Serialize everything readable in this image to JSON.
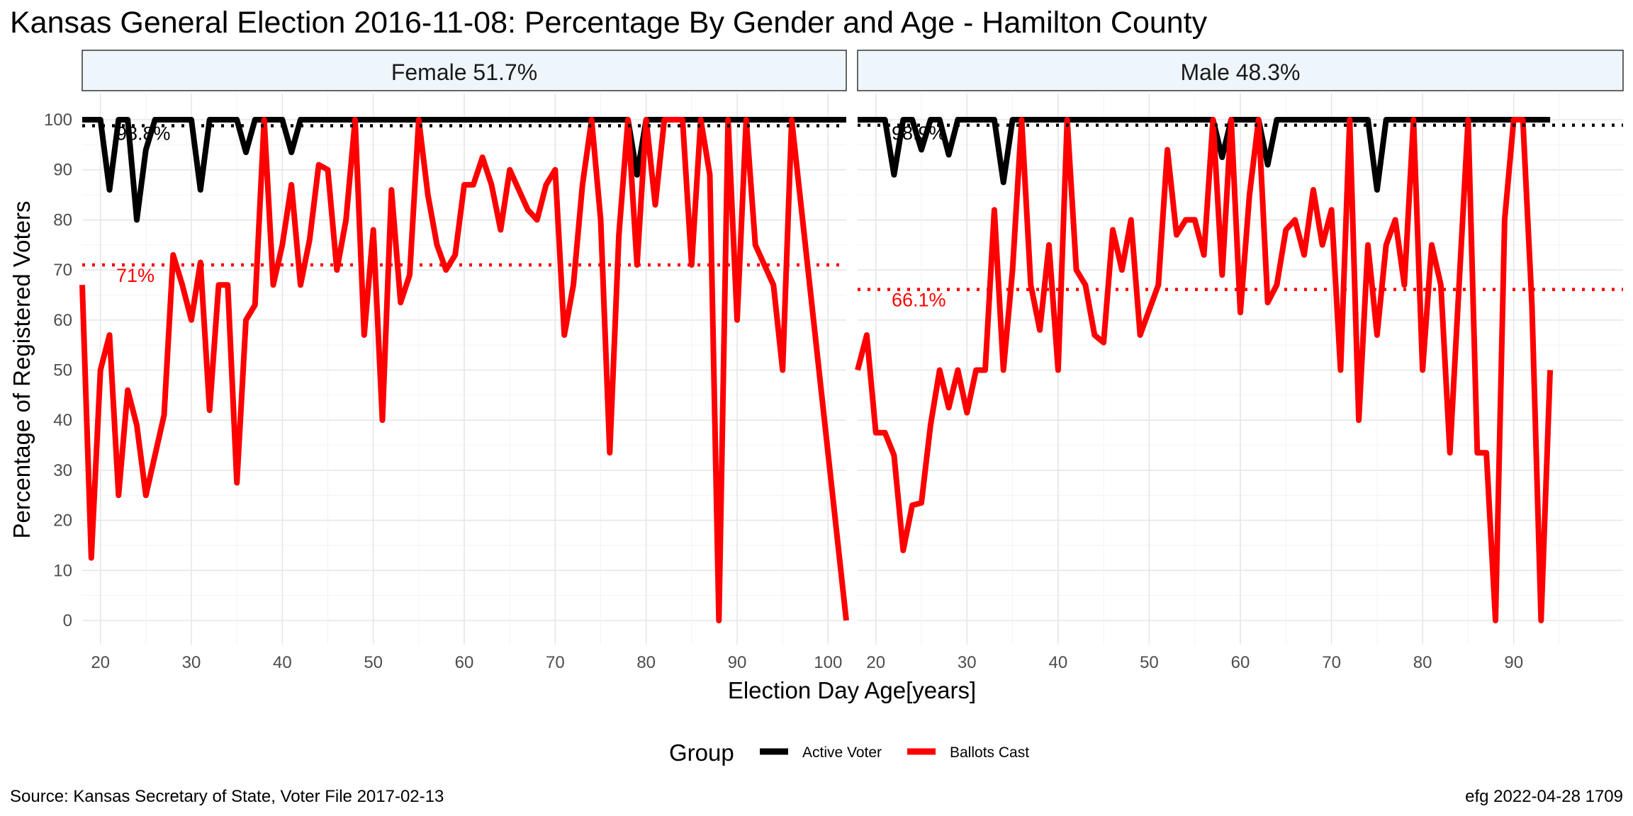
{
  "title": "Kansas General Election 2016-11-08:  Percentage By Gender and Age - Hamilton County",
  "caption_left": "Source:  Kansas Secretary of State, Voter File  2017-02-13",
  "caption_right": "efg 2022-04-28 1709",
  "chart_data": {
    "type": "line",
    "xlabel": "Election Day Age[years]",
    "ylabel": "Percentage of Registered Voters",
    "ylim": [
      0,
      100
    ],
    "yticks": [
      0,
      10,
      20,
      30,
      40,
      50,
      60,
      70,
      80,
      90,
      100
    ],
    "grid": true,
    "legend": {
      "title": "Group",
      "placement": "bottom",
      "entries": [
        {
          "name": "Active Voter",
          "color": "#000000"
        },
        {
          "name": "Ballots Cast",
          "color": "#ff0000"
        }
      ]
    },
    "panels": [
      {
        "strip": "Female 51.7%",
        "xlim": [
          18,
          102
        ],
        "xticks": [
          20,
          30,
          40,
          50,
          60,
          70,
          80,
          90,
          100
        ],
        "reference_lines": [
          {
            "series": "Active Voter",
            "value": 98.8,
            "label": "98.8%",
            "color": "#000000"
          },
          {
            "series": "Ballots Cast",
            "value": 71,
            "label": "71%",
            "color": "#ff0000"
          }
        ],
        "series": [
          {
            "name": "Active Voter",
            "color": "#000000",
            "x": [
              18,
              19,
              20,
              21,
              22,
              23,
              24,
              25,
              26,
              27,
              28,
              29,
              30,
              31,
              32,
              33,
              34,
              35,
              36,
              37,
              38,
              39,
              40,
              41,
              42,
              43,
              44,
              45,
              46,
              47,
              48,
              49,
              50,
              51,
              52,
              53,
              54,
              55,
              56,
              57,
              58,
              59,
              60,
              61,
              62,
              63,
              64,
              65,
              66,
              67,
              68,
              69,
              70,
              71,
              72,
              73,
              74,
              75,
              76,
              77,
              78,
              79,
              80,
              81,
              82,
              83,
              84,
              85,
              86,
              87,
              88,
              89,
              90,
              91,
              92,
              93,
              94,
              95,
              96,
              97,
              98,
              99,
              100,
              101,
              102
            ],
            "y": [
              100,
              100,
              100,
              86,
              100,
              100,
              80,
              94,
              100,
              100,
              100,
              100,
              100,
              86,
              100,
              100,
              100,
              100,
              93.5,
              100,
              100,
              100,
              100,
              93.5,
              100,
              100,
              100,
              100,
              100,
              100,
              100,
              100,
              100,
              100,
              100,
              100,
              100,
              100,
              100,
              100,
              100,
              100,
              100,
              100,
              100,
              100,
              100,
              100,
              100,
              100,
              100,
              100,
              100,
              100,
              100,
              100,
              100,
              100,
              100,
              100,
              100,
              89,
              100,
              100,
              100,
              100,
              100,
              100,
              100,
              100,
              100,
              100,
              100,
              100,
              100,
              100,
              100,
              100,
              100,
              100,
              100,
              100,
              100,
              100,
              100
            ]
          },
          {
            "name": "Ballots Cast",
            "color": "#ff0000",
            "x": [
              18,
              19,
              20,
              21,
              22,
              23,
              24,
              25,
              26,
              27,
              28,
              29,
              30,
              31,
              32,
              33,
              34,
              35,
              36,
              37,
              38,
              39,
              40,
              41,
              42,
              43,
              44,
              45,
              46,
              47,
              48,
              49,
              50,
              51,
              52,
              53,
              54,
              55,
              56,
              57,
              58,
              59,
              60,
              61,
              62,
              63,
              64,
              65,
              66,
              67,
              68,
              69,
              70,
              71,
              72,
              73,
              74,
              75,
              76,
              77,
              78,
              79,
              80,
              81,
              82,
              83,
              84,
              85,
              86,
              87,
              88,
              89,
              90,
              91,
              92,
              93,
              94,
              95,
              96,
              102
            ],
            "y": [
              67,
              12.5,
              50,
              57,
              25,
              46,
              39,
              25,
              33,
              41,
              73,
              67,
              60,
              71.5,
              42,
              67,
              67,
              27.5,
              60,
              63,
              100,
              67,
              75,
              87,
              67,
              76,
              91,
              90,
              70,
              80,
              100,
              57,
              78,
              40,
              86,
              63.5,
              69,
              100,
              85,
              75,
              70,
              73,
              87,
              87,
              92.5,
              87,
              78,
              90,
              86,
              82,
              80,
              87,
              90,
              57,
              67,
              87,
              100,
              80,
              33.5,
              77,
              100,
              71,
              100,
              83,
              100,
              100,
              100,
              71,
              100,
              89,
              0,
              100,
              60,
              100,
              75,
              71,
              67,
              50,
              100,
              0
            ]
          }
        ]
      },
      {
        "strip": "Male 48.3%",
        "xlim": [
          18,
          102
        ],
        "xticks": [
          20,
          30,
          40,
          50,
          60,
          70,
          80,
          90
        ],
        "reference_lines": [
          {
            "series": "Active Voter",
            "value": 98.9,
            "label": "98.9%",
            "color": "#000000"
          },
          {
            "series": "Ballots Cast",
            "value": 66.1,
            "label": "66.1%",
            "color": "#ff0000"
          }
        ],
        "series": [
          {
            "name": "Active Voter",
            "color": "#000000",
            "x": [
              18,
              19,
              20,
              21,
              22,
              23,
              24,
              25,
              26,
              27,
              28,
              29,
              30,
              31,
              32,
              33,
              34,
              35,
              36,
              37,
              38,
              39,
              40,
              41,
              42,
              43,
              44,
              45,
              46,
              47,
              48,
              49,
              50,
              51,
              52,
              53,
              54,
              55,
              56,
              57,
              58,
              59,
              60,
              61,
              62,
              63,
              64,
              65,
              66,
              67,
              68,
              69,
              70,
              71,
              72,
              73,
              74,
              75,
              76,
              77,
              78,
              79,
              80,
              81,
              82,
              83,
              84,
              85,
              86,
              87,
              88,
              89,
              90,
              91,
              92,
              93,
              94
            ],
            "y": [
              100,
              100,
              100,
              100,
              89,
              100,
              100,
              94,
              100,
              100,
              93,
              100,
              100,
              100,
              100,
              100,
              87.5,
              100,
              100,
              100,
              100,
              100,
              100,
              100,
              100,
              100,
              100,
              100,
              100,
              100,
              100,
              100,
              100,
              100,
              100,
              100,
              100,
              100,
              100,
              100,
              92.5,
              100,
              100,
              100,
              100,
              91,
              100,
              100,
              100,
              100,
              100,
              100,
              100,
              100,
              100,
              100,
              100,
              86,
              100,
              100,
              100,
              100,
              100,
              100,
              100,
              100,
              100,
              100,
              100,
              100,
              100,
              100,
              100,
              100,
              100,
              100,
              100
            ]
          },
          {
            "name": "Ballots Cast",
            "color": "#ff0000",
            "x": [
              18,
              19,
              20,
              21,
              22,
              23,
              24,
              25,
              26,
              27,
              28,
              29,
              30,
              31,
              32,
              33,
              34,
              35,
              36,
              37,
              38,
              39,
              40,
              41,
              42,
              43,
              44,
              45,
              46,
              47,
              48,
              49,
              50,
              51,
              52,
              53,
              54,
              55,
              56,
              57,
              58,
              59,
              60,
              61,
              62,
              63,
              64,
              65,
              66,
              67,
              68,
              69,
              70,
              71,
              72,
              73,
              74,
              75,
              76,
              77,
              78,
              79,
              80,
              81,
              82,
              83,
              84,
              85,
              86,
              87,
              88,
              89,
              90,
              91,
              92,
              93,
              94
            ],
            "y": [
              50,
              57,
              37.5,
              37.5,
              33,
              14,
              23,
              23.5,
              39,
              50,
              42.5,
              50,
              41.5,
              50,
              50,
              82,
              50,
              70,
              100,
              67,
              58,
              75,
              50,
              100,
              70,
              67,
              57,
              55.5,
              78,
              70,
              80,
              57,
              62,
              67,
              94,
              77,
              80,
              80,
              73,
              100,
              69,
              100,
              61.5,
              85,
              100,
              63.5,
              67,
              78,
              80,
              73,
              86,
              75,
              82,
              50,
              100,
              40,
              75,
              57,
              75,
              80,
              67,
              100,
              50,
              75,
              67,
              33.5,
              67,
              100,
              33.5,
              33.5,
              0,
              80,
              100,
              100,
              63,
              0,
              50
            ]
          }
        ]
      }
    ]
  }
}
